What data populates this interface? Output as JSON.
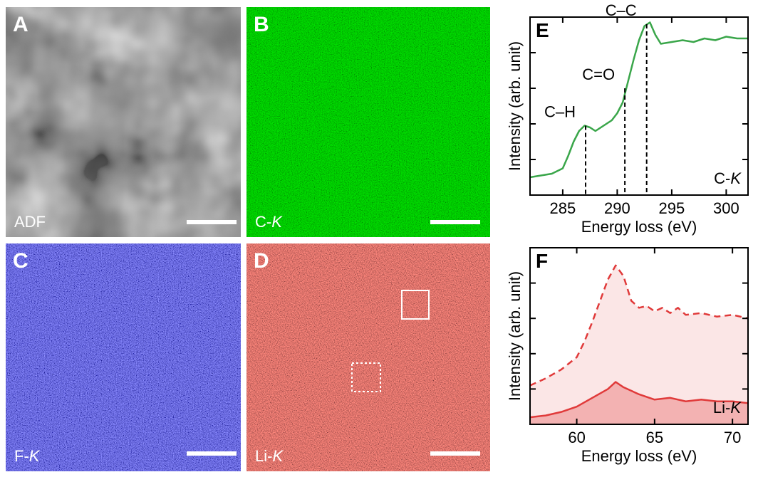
{
  "images": [
    {
      "id": "A",
      "letter": "A",
      "label": "ADF",
      "label_italic": "",
      "colors": [
        "#1a1a1a",
        "#e8e8e8"
      ],
      "scale_bar": true
    },
    {
      "id": "B",
      "letter": "B",
      "label": "C-",
      "label_italic": "K",
      "colors": [
        "#000000",
        "#2fa84f"
      ],
      "scale_bar": true
    },
    {
      "id": "C",
      "letter": "C",
      "label": "F-",
      "label_italic": "K",
      "colors": [
        "#000000",
        "#3a3ad8"
      ],
      "scale_bar": true
    },
    {
      "id": "D",
      "letter": "D",
      "label": "Li-",
      "label_italic": "K",
      "colors": [
        "#000000",
        "#e03a2e"
      ],
      "scale_bar": true
    }
  ],
  "chart_data": [
    {
      "id": "E",
      "letter": "E",
      "type": "line",
      "xlabel": "Energy loss (eV)",
      "ylabel": "Intensity (arb. unit)",
      "xlim": [
        282,
        302
      ],
      "ylim": [
        0,
        1
      ],
      "xticks": [
        285,
        290,
        295,
        300
      ],
      "inset_label": "C-",
      "inset_label_italic": "K",
      "color": "#3aa64a",
      "series": [
        {
          "name": "",
          "x": [
            282,
            283,
            284,
            285,
            285.5,
            286,
            286.5,
            287,
            287.5,
            288,
            288.5,
            289,
            289.5,
            290,
            290.5,
            291,
            291.5,
            292,
            292.5,
            293,
            293.5,
            294,
            295,
            296,
            297,
            298,
            299,
            300,
            301,
            302
          ],
          "y": [
            0.1,
            0.11,
            0.12,
            0.15,
            0.22,
            0.3,
            0.36,
            0.39,
            0.38,
            0.36,
            0.38,
            0.4,
            0.42,
            0.46,
            0.52,
            0.64,
            0.76,
            0.87,
            0.95,
            0.97,
            0.9,
            0.85,
            0.86,
            0.87,
            0.86,
            0.88,
            0.87,
            0.89,
            0.88,
            0.88
          ]
        }
      ],
      "annotations": [
        {
          "text": "C–H",
          "x": 287.1,
          "y": 0.39
        },
        {
          "text": "C=O",
          "x": 290.7,
          "y": 0.6
        },
        {
          "text": "C–C",
          "x": 292.7,
          "y": 0.96
        }
      ]
    },
    {
      "id": "F",
      "letter": "F",
      "type": "area",
      "xlabel": "Energy loss (eV)",
      "ylabel": "Intensity (arb. unit)",
      "xlim": [
        57,
        71
      ],
      "ylim": [
        0,
        1
      ],
      "xticks": [
        60,
        65,
        70
      ],
      "inset_label": "Li-",
      "inset_label_italic": "K",
      "color": "#e03a3a",
      "series": [
        {
          "name": "",
          "style": "dashed",
          "x": [
            57,
            58,
            59,
            60,
            60.5,
            61,
            61.5,
            62,
            62.5,
            63,
            63.5,
            64,
            64.5,
            65,
            65.5,
            66,
            66.5,
            67,
            68,
            69,
            70,
            71
          ],
          "y": [
            0.22,
            0.26,
            0.31,
            0.38,
            0.47,
            0.58,
            0.7,
            0.82,
            0.9,
            0.84,
            0.7,
            0.66,
            0.67,
            0.64,
            0.66,
            0.63,
            0.66,
            0.62,
            0.63,
            0.61,
            0.62,
            0.6
          ]
        },
        {
          "name": "",
          "style": "solid",
          "x": [
            57,
            58,
            59,
            60,
            61,
            62,
            62.5,
            63,
            64,
            65,
            66,
            67,
            68,
            69,
            70,
            71
          ],
          "y": [
            0.04,
            0.05,
            0.07,
            0.1,
            0.15,
            0.2,
            0.24,
            0.21,
            0.17,
            0.14,
            0.15,
            0.13,
            0.14,
            0.13,
            0.13,
            0.12
          ]
        }
      ]
    }
  ]
}
